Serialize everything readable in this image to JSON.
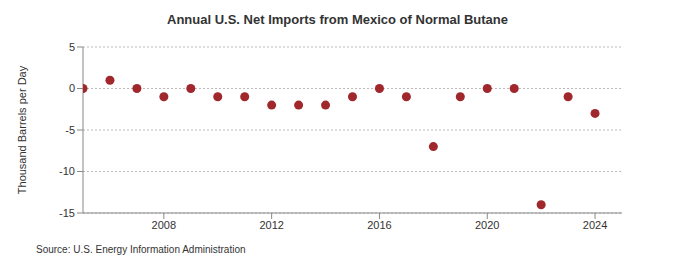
{
  "chart_data": {
    "type": "scatter",
    "title": "Annual U.S. Net Imports from Mexico of Normal Butane",
    "x": [
      2005,
      2006,
      2007,
      2008,
      2009,
      2010,
      2011,
      2012,
      2013,
      2014,
      2015,
      2016,
      2017,
      2018,
      2019,
      2020,
      2021,
      2022,
      2023,
      2024
    ],
    "values": [
      0,
      1,
      0,
      -1,
      0,
      -1,
      -1,
      -2,
      -2,
      -2,
      -1,
      0,
      -1,
      -7,
      -1,
      0,
      0,
      -14,
      -1,
      -3
    ],
    "xlim": [
      2005,
      2025
    ],
    "xticks": [
      2008,
      2012,
      2016,
      2020,
      2024
    ],
    "ylim": [
      -15,
      5
    ],
    "yticks": [
      -15,
      -10,
      -5,
      0,
      5
    ],
    "y_label": "Thousand Barrels per Day",
    "source": "Source: U.S. Energy Information Administration",
    "color": "#a0282d",
    "marker": "circle",
    "grid": true
  }
}
